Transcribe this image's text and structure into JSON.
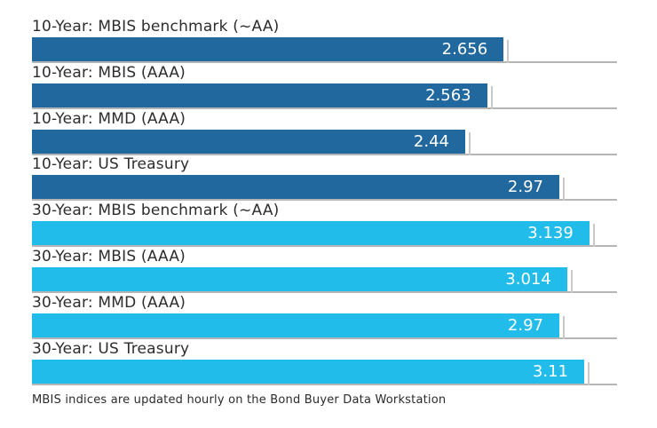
{
  "chart_data": {
    "type": "bar",
    "orientation": "horizontal",
    "title": "",
    "xlabel": "",
    "ylabel": "",
    "xlim": [
      0,
      3.295
    ],
    "grid": "baseline-under-each-bar",
    "legend_position": "none",
    "bars": [
      {
        "label": "10-Year: MBIS benchmark (~AA)",
        "value": 2.656,
        "display": "2.656",
        "group": "10-year"
      },
      {
        "label": "10-Year: MBIS (AAA)",
        "value": 2.563,
        "display": "2.563",
        "group": "10-year"
      },
      {
        "label": "10-Year: MMD (AAA)",
        "value": 2.44,
        "display": "2.44",
        "group": "10-year"
      },
      {
        "label": "10-Year: US Treasury",
        "value": 2.97,
        "display": "2.97",
        "group": "10-year"
      },
      {
        "label": "30-Year: MBIS benchmark (~AA)",
        "value": 3.139,
        "display": "3.139",
        "group": "30-year"
      },
      {
        "label": "30-Year: MBIS (AAA)",
        "value": 3.014,
        "display": "3.014",
        "group": "30-year"
      },
      {
        "label": "30-Year: MMD (AAA)",
        "value": 2.97,
        "display": "2.97",
        "group": "30-year"
      },
      {
        "label": "30-Year: US Treasury",
        "value": 3.11,
        "display": "3.11",
        "group": "30-year"
      }
    ],
    "group_colors": {
      "10-year": "#21689F",
      "30-year": "#22BCEA"
    },
    "value_label_color": "#ffffff",
    "baseline_color": "#b5b5b5",
    "footnote": "MBIS indices are updated hourly on the Bond Buyer Data Workstation"
  }
}
